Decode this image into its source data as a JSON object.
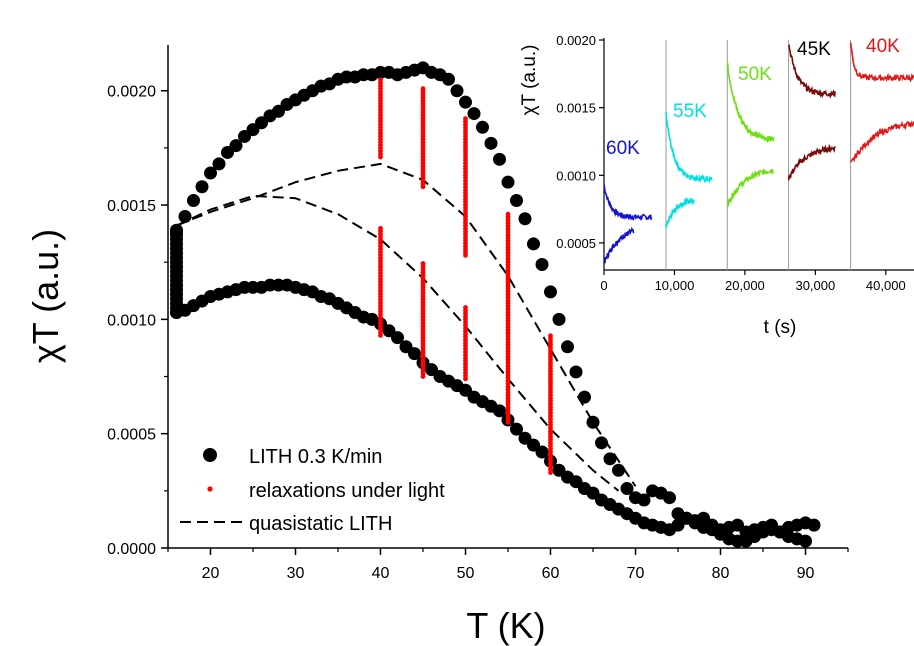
{
  "chart_data": [
    {
      "type": "scatter",
      "title": "",
      "xlabel": "T (K)",
      "ylabel": "χT (a.u.)",
      "xlim": [
        15,
        95
      ],
      "ylim": [
        0,
        0.0022
      ],
      "x_ticks": [
        20,
        30,
        40,
        50,
        60,
        70,
        80,
        90
      ],
      "y_ticks": [
        0.0,
        0.0005,
        0.001,
        0.0015,
        0.002
      ],
      "x_tick_labels": [
        "20",
        "30",
        "40",
        "50",
        "60",
        "70",
        "80",
        "90"
      ],
      "y_tick_labels": [
        "0.0000",
        "0.0005",
        "0.0010",
        "0.0015",
        "0.0020"
      ],
      "grid": false,
      "legend_position": "bottom-left",
      "series": [
        {
          "name": "LITH 0.3 K/min",
          "style": "large-black-dots",
          "color": "#000000",
          "branches": [
            {
              "x": [
                16,
                17,
                18,
                19,
                20,
                21,
                22,
                23,
                24,
                25,
                26,
                27,
                28,
                29,
                30,
                31,
                32,
                33,
                34,
                35,
                36,
                37,
                38,
                39,
                40,
                41,
                42,
                43,
                44,
                45,
                46,
                47,
                48,
                49,
                50,
                51,
                52,
                53,
                54,
                55,
                56,
                57,
                58,
                59,
                60,
                61,
                62,
                63,
                64,
                65,
                66,
                67,
                68,
                69,
                70,
                71,
                72,
                73,
                74,
                75,
                76,
                77,
                78,
                79,
                80,
                81,
                82,
                83,
                84,
                85,
                86,
                87,
                88,
                89,
                90,
                91
              ],
              "y": [
                0.00138,
                0.00145,
                0.00152,
                0.00158,
                0.00164,
                0.00168,
                0.00173,
                0.00176,
                0.0018,
                0.00183,
                0.00186,
                0.00189,
                0.00191,
                0.00194,
                0.00196,
                0.00198,
                0.002,
                0.00202,
                0.00203,
                0.00205,
                0.00206,
                0.00206,
                0.00207,
                0.00207,
                0.00208,
                0.00208,
                0.00207,
                0.00208,
                0.00209,
                0.0021,
                0.00208,
                0.00207,
                0.00205,
                0.002,
                0.00195,
                0.0019,
                0.00184,
                0.00177,
                0.0017,
                0.0016,
                0.00152,
                0.00144,
                0.00133,
                0.00124,
                0.00112,
                0.001,
                0.00088,
                0.00077,
                0.00066,
                0.00055,
                0.00046,
                0.00039,
                0.00034,
                0.00026,
                0.00022,
                0.00021,
                0.00025,
                0.00024,
                0.00022,
                0.00015,
                0.00013,
                0.00012,
                0.00013,
                0.0001,
                8e-05,
                9e-05,
                0.0001,
                7e-05,
                8e-05,
                9e-05,
                0.0001,
                7e-05,
                9e-05,
                0.0001,
                0.00011,
                0.0001
              ]
            },
            {
              "x": [
                16,
                17,
                18,
                19,
                20,
                21,
                22,
                23,
                24,
                25,
                26,
                27,
                28,
                29,
                30,
                31,
                32,
                33,
                34,
                35,
                36,
                37,
                38,
                39,
                40,
                41,
                42,
                43,
                44,
                45,
                46,
                47,
                48,
                49,
                50,
                51,
                52,
                53,
                54,
                55,
                56,
                57,
                58,
                59,
                60,
                61,
                62,
                63,
                64,
                65,
                66,
                67,
                68,
                69,
                70,
                71,
                72,
                73,
                74,
                75,
                76,
                77,
                78,
                79,
                80,
                81,
                82,
                83,
                84,
                85,
                86,
                87,
                88,
                89,
                90
              ],
              "y": [
                0.00103,
                0.00104,
                0.00106,
                0.00108,
                0.0011,
                0.00111,
                0.00112,
                0.00113,
                0.00114,
                0.00114,
                0.00114,
                0.00115,
                0.00115,
                0.00115,
                0.00114,
                0.00113,
                0.00112,
                0.0011,
                0.00109,
                0.00107,
                0.00105,
                0.00103,
                0.00101,
                0.001,
                0.00098,
                0.00095,
                0.00092,
                0.00088,
                0.00085,
                0.00081,
                0.00078,
                0.00075,
                0.00073,
                0.00071,
                0.00069,
                0.00066,
                0.00064,
                0.00062,
                0.0006,
                0.00056,
                0.00052,
                0.00048,
                0.00045,
                0.00042,
                0.00038,
                0.00034,
                0.00031,
                0.00029,
                0.00026,
                0.00024,
                0.00021,
                0.00019,
                0.00017,
                0.00015,
                0.00013,
                0.00011,
                0.0001,
                9e-05,
                8e-05,
                0.0001,
                0.00013,
                0.00011,
                9e-05,
                8e-05,
                6e-05,
                4e-05,
                3e-05,
                3e-05,
                5e-05,
                7e-05,
                8e-05,
                7e-05,
                5e-05,
                4e-05,
                3e-05
              ]
            }
          ],
          "vertical_cluster": {
            "x": 16,
            "y_from": 0.00103,
            "y_to": 0.0014
          }
        },
        {
          "name": "relaxations under light",
          "style": "small-red-dots",
          "color": "#ff0000",
          "columns": [
            {
              "x": 40,
              "from": 0.0014,
              "to": 0.00093,
              "from2": 0.00205,
              "to2": 0.00171
            },
            {
              "x": 45,
              "from": 0.00125,
              "to": 0.00075,
              "from2": 0.00201,
              "to2": 0.00158
            },
            {
              "x": 50,
              "from": 0.00106,
              "to": 0.00074,
              "from2": 0.00188,
              "to2": 0.00128
            },
            {
              "x": 55,
              "from": 0.00146,
              "to": 0.00055
            },
            {
              "x": 60,
              "from": 0.00093,
              "to": 0.00033
            }
          ]
        },
        {
          "name": "quasistatic LITH",
          "style": "dashed-black",
          "color": "#000000",
          "branches": [
            {
              "x": [
                16,
                20,
                25,
                30,
                35,
                40,
                45,
                50,
                55,
                60,
                65,
                70
              ],
              "y": [
                0.00141,
                0.00147,
                0.00153,
                0.0016,
                0.00165,
                0.00168,
                0.00161,
                0.00145,
                0.00119,
                0.00087,
                0.00055,
                0.00027
              ]
            },
            {
              "x": [
                16,
                20,
                25,
                30,
                35,
                40,
                45,
                50,
                55,
                60,
                65,
                68
              ],
              "y": [
                0.00141,
                0.00148,
                0.00154,
                0.00153,
                0.00146,
                0.00135,
                0.00118,
                0.00097,
                0.00074,
                0.00052,
                0.00034,
                0.00025
              ]
            }
          ]
        }
      ]
    },
    {
      "type": "line",
      "title": "",
      "xlabel": "t (s)",
      "ylabel": "χT (a.u.)",
      "xlim": [
        0,
        44000
      ],
      "ylim": [
        0.0003,
        0.002
      ],
      "x_ticks": [
        0,
        10000,
        20000,
        30000,
        40000
      ],
      "y_ticks": [
        0.0005,
        0.001,
        0.0015,
        0.002
      ],
      "x_tick_labels": [
        "0",
        "10,000",
        "20,000",
        "30,000",
        "40,000"
      ],
      "y_tick_labels": [
        "0.0005",
        "0.0010",
        "0.0015",
        "0.0020"
      ],
      "grid": false,
      "separators_x": [
        8800,
        17500,
        26200,
        35000
      ],
      "series": [
        {
          "name": "60K",
          "color": "#1414d0",
          "upper": {
            "t_start": 0,
            "t_end": 6700,
            "y_start": 0.00093,
            "y_end": 0.00069,
            "tau": 900
          },
          "lower": {
            "t_start": 0,
            "t_end": 4200,
            "y_start": 0.00035,
            "y_end": 0.00063,
            "tau": 2200
          }
        },
        {
          "name": "55K",
          "color": "#00e0e0",
          "upper": {
            "t_start": 8800,
            "t_end": 15300,
            "y_start": 0.00145,
            "y_end": 0.00097,
            "tau": 1100
          },
          "lower": {
            "t_start": 8800,
            "t_end": 12800,
            "y_start": 0.00062,
            "y_end": 0.00083,
            "tau": 1400
          }
        },
        {
          "name": "50K",
          "color": "#6de012",
          "upper": {
            "t_start": 17500,
            "t_end": 24100,
            "y_start": 0.00183,
            "y_end": 0.00126,
            "tau": 1500
          },
          "lower": {
            "t_start": 17500,
            "t_end": 24100,
            "y_start": 0.00078,
            "y_end": 0.00106,
            "tau": 2500
          }
        },
        {
          "name": "45K",
          "color": "#7a0b0b",
          "upper": {
            "t_start": 26200,
            "t_end": 32800,
            "y_start": 0.00198,
            "y_end": 0.0016,
            "tau": 1200
          },
          "lower": {
            "t_start": 26200,
            "t_end": 32800,
            "y_start": 0.00098,
            "y_end": 0.00122,
            "tau": 2500
          }
        },
        {
          "name": "40K",
          "color": "#e01818",
          "upper": {
            "t_start": 35000,
            "t_end": 44000,
            "y_start": 0.00199,
            "y_end": 0.00172,
            "tau": 500
          },
          "lower": {
            "t_start": 35000,
            "t_end": 44000,
            "y_start": 0.00108,
            "y_end": 0.00141,
            "tau": 3500
          }
        }
      ]
    }
  ]
}
